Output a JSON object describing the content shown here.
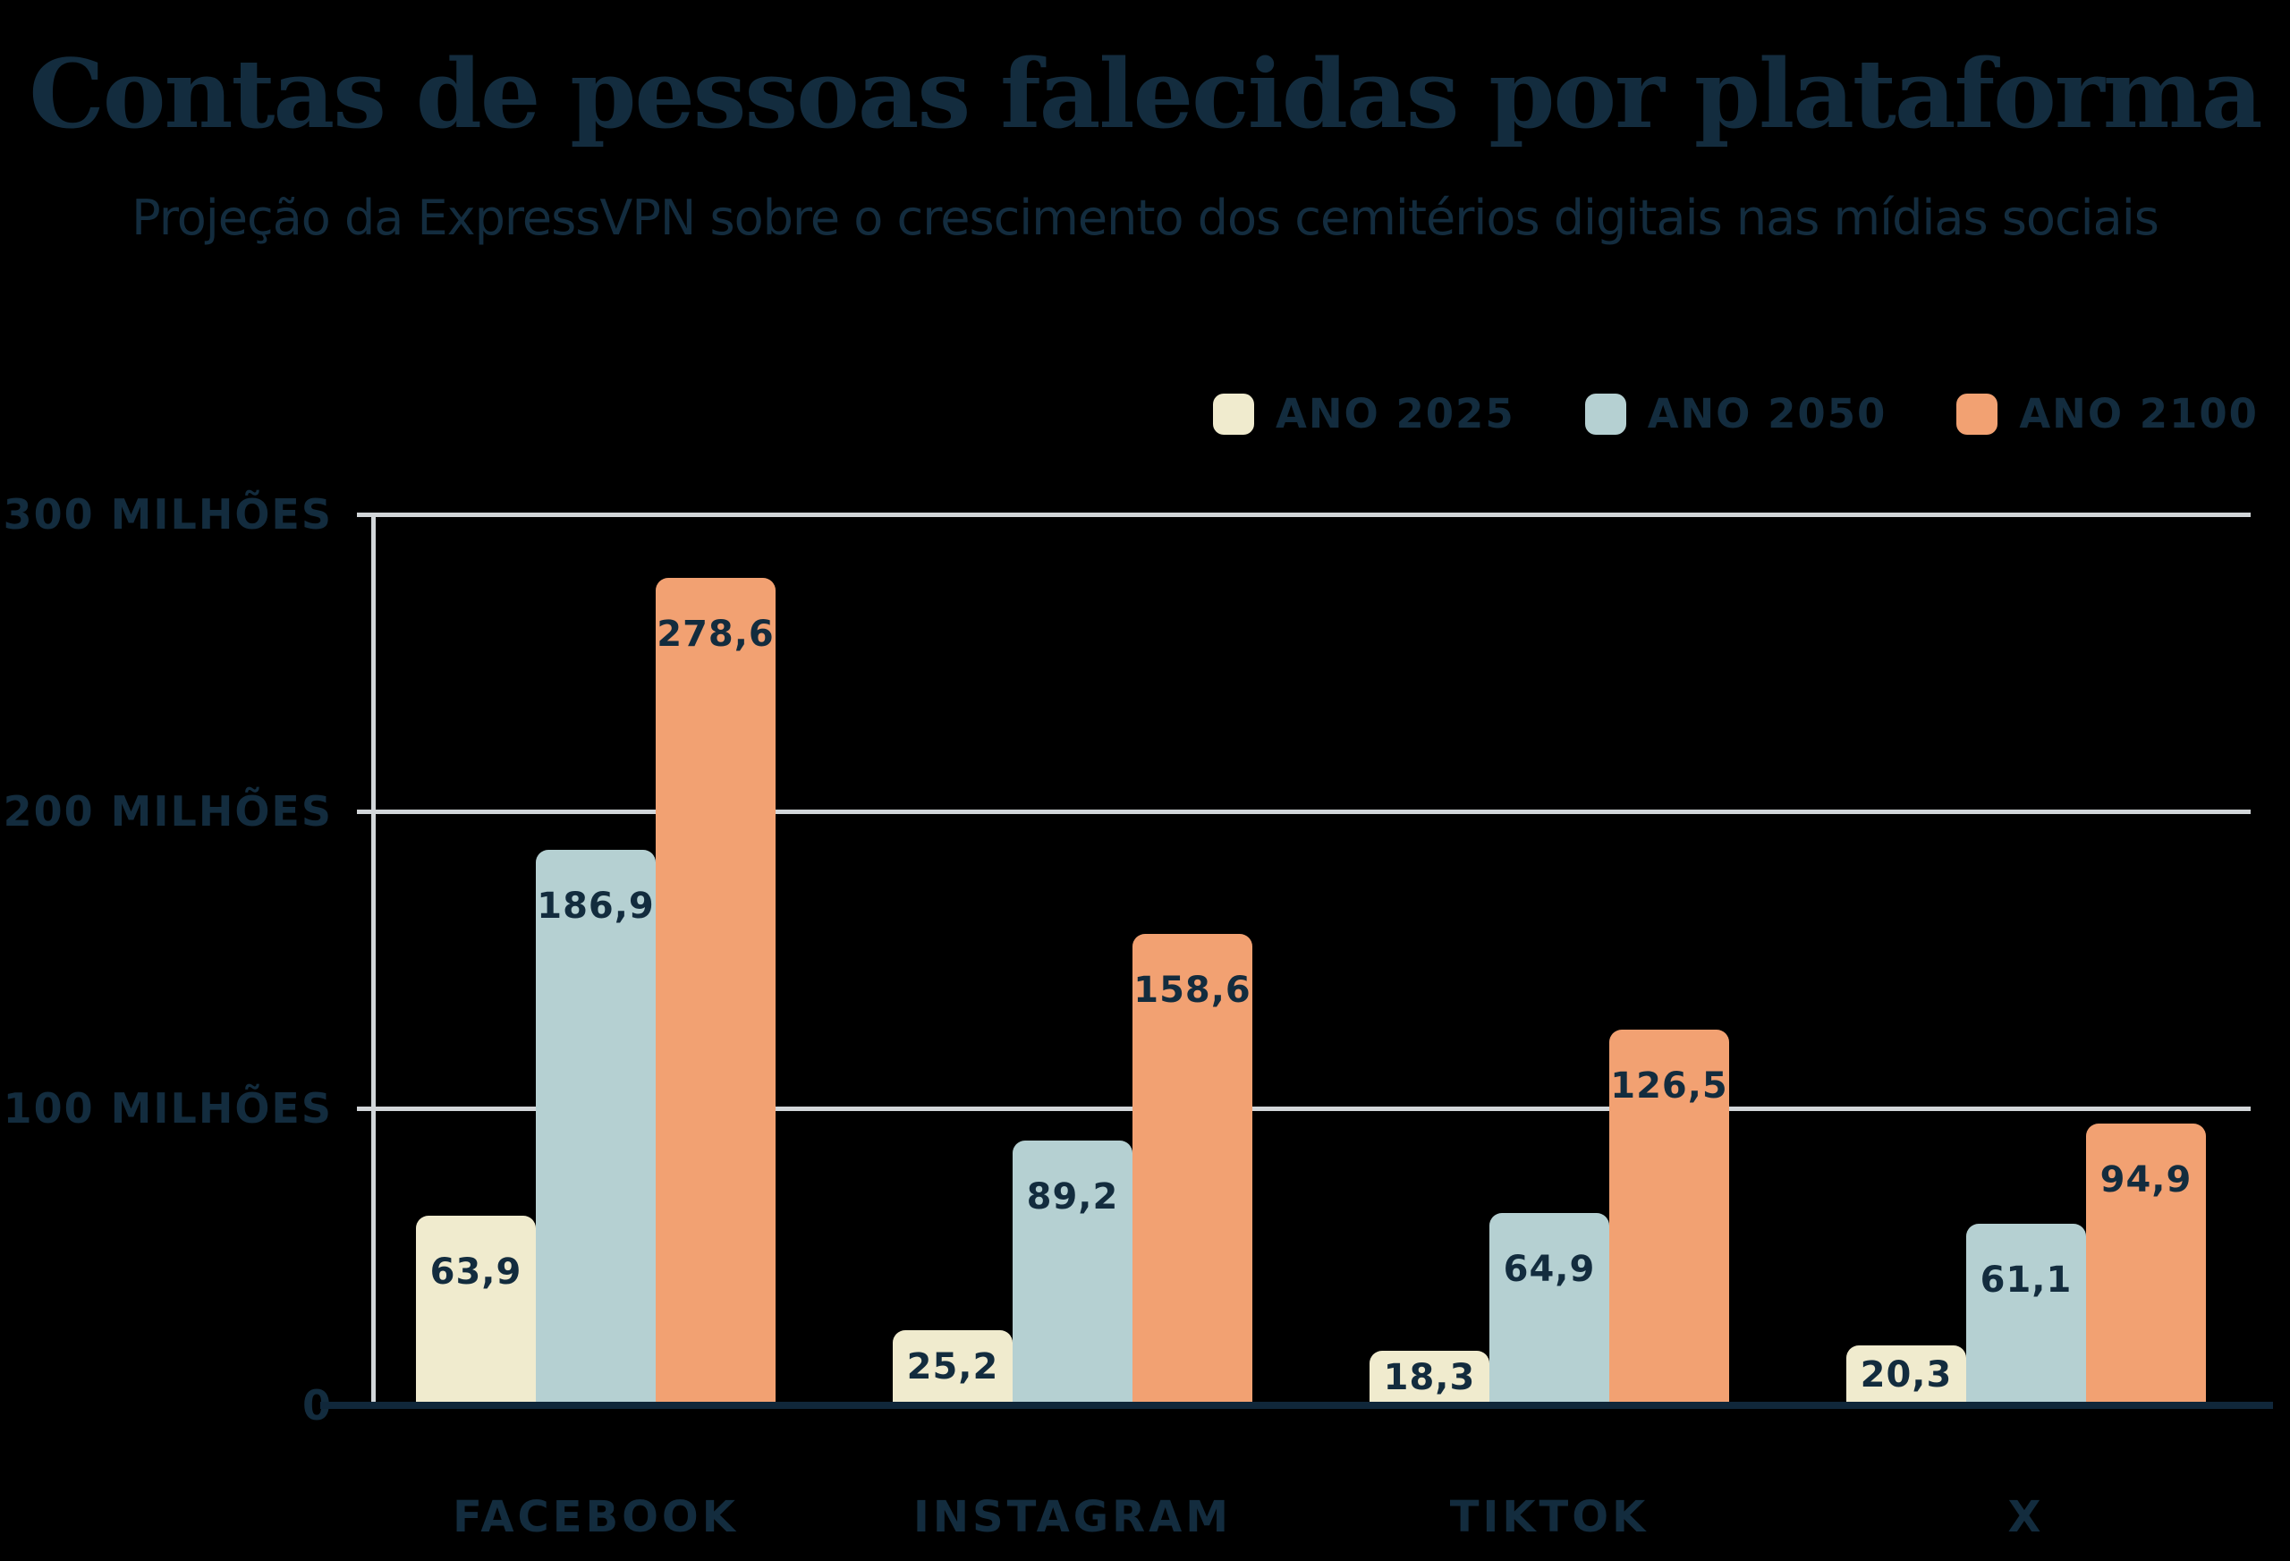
{
  "title": "Contas de pessoas falecidas por plataforma",
  "subtitle": "Projeção da ExpressVPN sobre o crescimento dos cemitérios digitais nas mídias sociais",
  "colors": {
    "background": "#000000",
    "text": "#132c3e",
    "gridline": "#d2d6d9",
    "axis_line": "#10273a",
    "series_2025": "#f0ebce",
    "series_2050": "#b5d0d2",
    "series_2100": "#f2a172"
  },
  "chart_data": {
    "type": "bar",
    "title": "Contas de pessoas falecidas por plataforma",
    "subtitle": "Projeção da ExpressVPN sobre o crescimento dos cemitérios digitais nas mídias sociais",
    "categories": [
      "FACEBOOK",
      "INSTAGRAM",
      "TIKTOK",
      "X"
    ],
    "series": [
      {
        "name": "ANO 2025",
        "color": "#f0ebce",
        "values": [
          63.9,
          25.2,
          18.3,
          20.3
        ],
        "labels": [
          "63,9",
          "25,2",
          "18,3",
          "20,3"
        ]
      },
      {
        "name": "ANO 2050",
        "color": "#b5d0d2",
        "values": [
          186.9,
          89.2,
          64.9,
          61.1
        ],
        "labels": [
          "186,9",
          "89,2",
          "64,9",
          "61,1"
        ]
      },
      {
        "name": "ANO 2100",
        "color": "#f2a172",
        "values": [
          278.6,
          158.6,
          126.5,
          94.9
        ],
        "labels": [
          "278,6",
          "158,6",
          "126,5",
          "94,9"
        ]
      }
    ],
    "xlabel": "",
    "ylabel": "",
    "ylim": [
      0,
      300
    ],
    "y_ticks": [
      {
        "value": 300,
        "label": "300 MILHÕES"
      },
      {
        "value": 200,
        "label": "200 MILHÕES"
      },
      {
        "value": 100,
        "label": "100 MILHÕES"
      },
      {
        "value": 0,
        "label": "0"
      }
    ],
    "grid": true,
    "legend_position": "top-right"
  }
}
